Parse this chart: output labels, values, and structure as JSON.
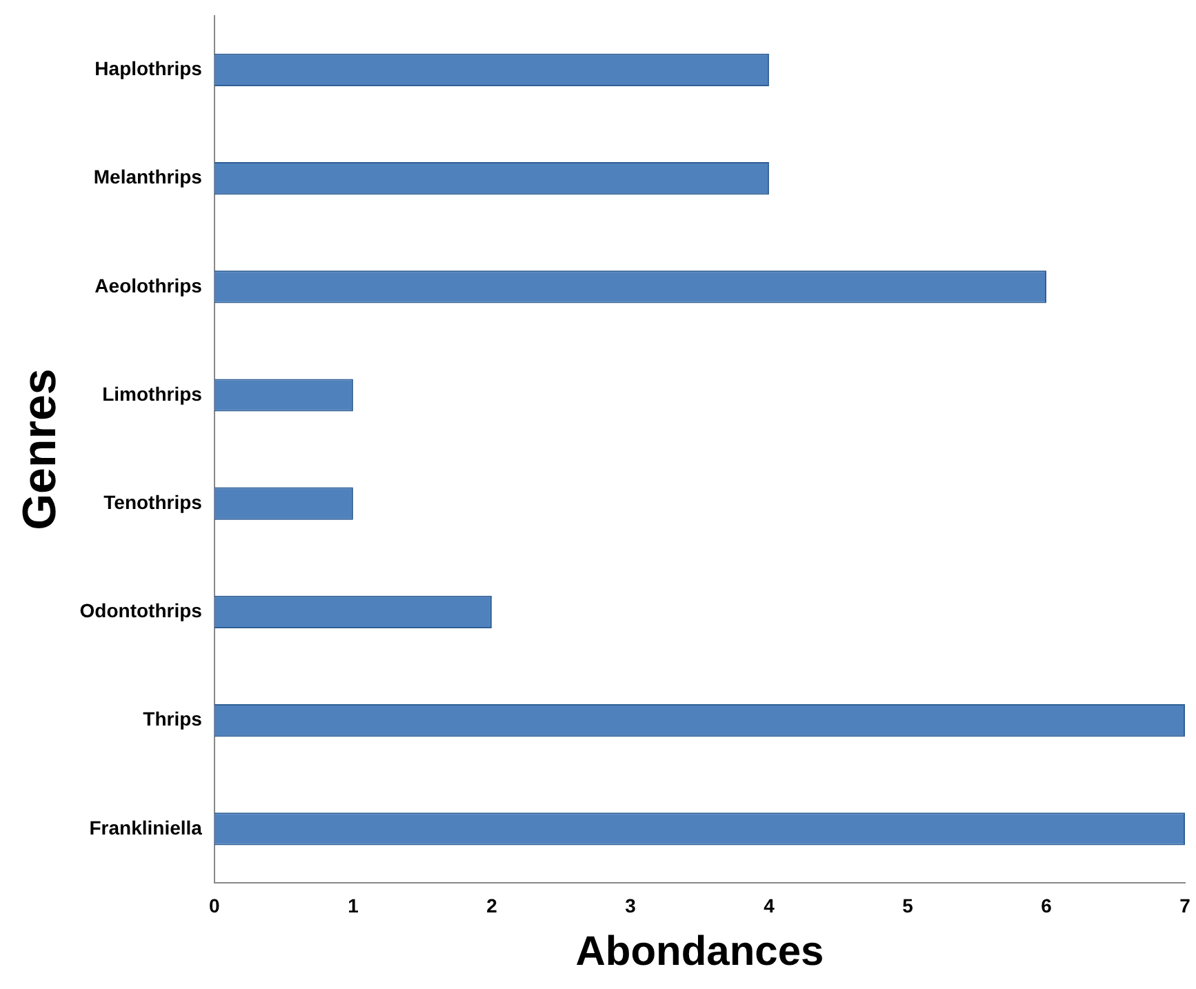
{
  "chart_data": {
    "type": "bar",
    "orientation": "horizontal",
    "xlabel": "Abondances",
    "ylabel": "Genres",
    "categories": [
      "Haplothrips",
      "Melanthrips",
      "Aeolothrips",
      "Limothrips",
      "Tenothrips",
      "Odontothrips",
      "Thrips",
      "Frankliniella"
    ],
    "values": [
      4,
      4,
      6,
      1,
      1,
      2,
      7,
      7
    ],
    "color": "#4f81bd",
    "xlim": [
      0,
      7
    ],
    "xticks": [
      0,
      1,
      2,
      3,
      4,
      5,
      6,
      7
    ],
    "grid": false,
    "legend": false
  }
}
